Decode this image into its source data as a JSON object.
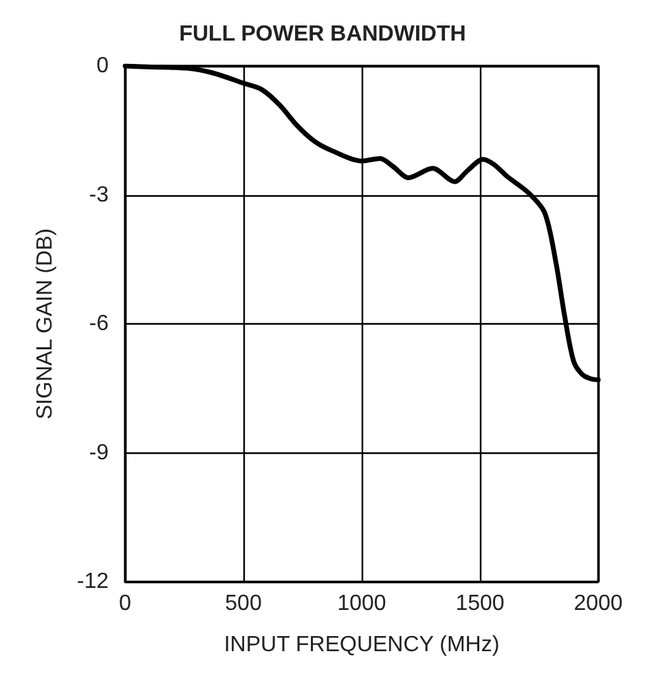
{
  "chart_data": {
    "type": "line",
    "title": "FULL POWER BANDWIDTH",
    "xlabel": "INPUT FREQUENCY (MHz)",
    "ylabel": "SIGNAL GAIN (DB)",
    "x": [
      0,
      93,
      259,
      370,
      500,
      578,
      652,
      726,
      800,
      874,
      1000,
      1078,
      1133,
      1198,
      1300,
      1393,
      1448,
      1513,
      1559,
      1615,
      1707,
      1774,
      1821,
      1858,
      1896,
      1933,
      1970,
      2000
    ],
    "series": [
      {
        "color": "#000000",
        "values": [
          0,
          -0.02,
          -0.05,
          -0.16,
          -0.4,
          -0.55,
          -0.9,
          -1.38,
          -1.75,
          -1.97,
          -2.21,
          -2.15,
          -2.34,
          -2.6,
          -2.38,
          -2.69,
          -2.43,
          -2.17,
          -2.29,
          -2.57,
          -2.96,
          -3.42,
          -4.57,
          -5.82,
          -6.87,
          -7.18,
          -7.28,
          -7.3
        ]
      }
    ],
    "xlim": [
      0,
      2000
    ],
    "xticks": [
      0,
      500,
      1000,
      1500,
      2000
    ],
    "ylim": [
      -12,
      0
    ],
    "yticks": [
      -12,
      -9,
      -6,
      -3,
      0
    ],
    "grid": true,
    "marker": "none",
    "line_style": "solid"
  }
}
